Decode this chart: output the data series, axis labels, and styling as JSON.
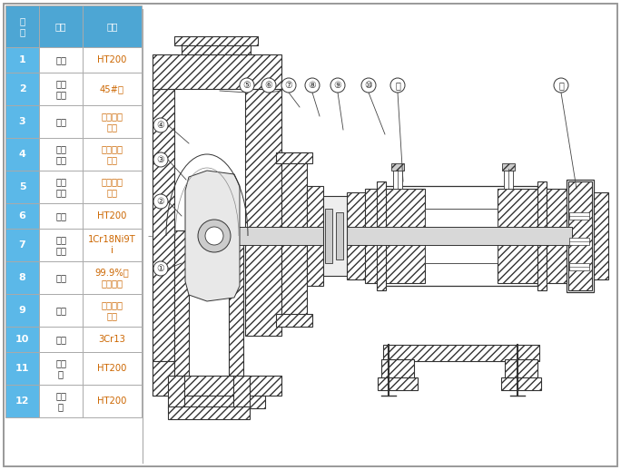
{
  "table": {
    "col0_header": "序\n号",
    "col1_header": "名称",
    "col2_header": "材质",
    "rows": [
      {
        "num": "1",
        "name": "泵体",
        "material": "HT200"
      },
      {
        "num": "2",
        "name": "叶轮\n骨架",
        "material": "45#钢"
      },
      {
        "num": "3",
        "name": "叶轮",
        "material": "聚全氟乙\n丙烯"
      },
      {
        "num": "4",
        "name": "泵体\n衬里",
        "material": "聚全氟乙\n丙烯"
      },
      {
        "num": "5",
        "name": "泵盖\n衬里",
        "material": "聚全氟乙\n丙烯"
      },
      {
        "num": "6",
        "name": "泵盖",
        "material": "HT200"
      },
      {
        "num": "7",
        "name": "机封\n压盖",
        "material": "1Cr18Ni9T\ni"
      },
      {
        "num": "8",
        "name": "静环",
        "material": "99.9%氧\n化铝陶瓷"
      },
      {
        "num": "9",
        "name": "动环",
        "material": "填充四氟\n乙烯"
      },
      {
        "num": "10",
        "name": "泵轴",
        "material": "3Cr13"
      },
      {
        "num": "11",
        "name": "轴承\n体",
        "material": "HT200"
      },
      {
        "num": "12",
        "name": "联轴\n器",
        "material": "HT200"
      }
    ],
    "header_bg": "#4da6d4",
    "row_bg_blue": "#5bb8e8",
    "row_bg_white": "#ffffff",
    "text_color_num": "#ffffff",
    "text_color_name": "#222222",
    "text_color_material_orange": "#cc6600",
    "text_color_material_black": "#222222",
    "border_color": "#aaaaaa"
  },
  "lc": "#333333",
  "background": "#ffffff",
  "outer_border_color": "#999999"
}
